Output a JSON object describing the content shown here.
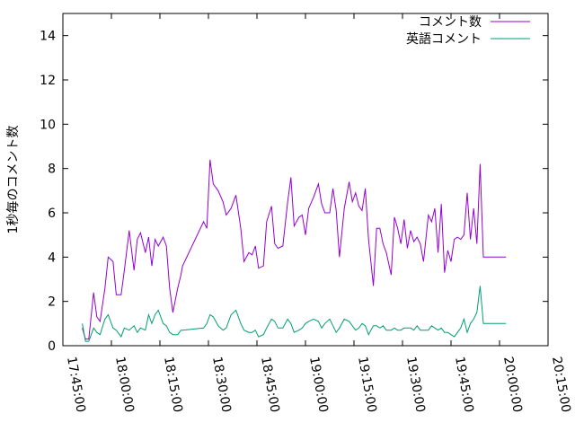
{
  "chart_data": {
    "type": "line",
    "ylabel": "1秒毎のコメント数",
    "xlabel": "",
    "title": "",
    "ylim": [
      0,
      15
    ],
    "yticks": [
      0,
      2,
      4,
      6,
      8,
      10,
      12,
      14
    ],
    "yticklabels": [
      "0",
      "2",
      "4",
      "6",
      "8",
      "10",
      "12",
      "14"
    ],
    "xlim": [
      "17:45:00",
      "20:15:00"
    ],
    "xticklabels": [
      "17:45:00",
      "18:00:00",
      "18:15:00",
      "18:30:00",
      "18:45:00",
      "19:00:00",
      "19:15:00",
      "19:30:00",
      "19:45:00",
      "20:00:00",
      "20:15:00"
    ],
    "legend_position": "top-right",
    "colors": {
      "series1": "#9400d3",
      "series2": "#009e73"
    },
    "series": [
      {
        "name": "コメント数",
        "x": [
          "17:51:00",
          "17:52:00",
          "17:53:00",
          "17:54:30",
          "17:55:30",
          "17:56:30",
          "17:58:00",
          "17:59:00",
          "18:00:30",
          "18:01:30",
          "18:03:00",
          "18:04:00",
          "18:05:30",
          "18:07:00",
          "18:08:00",
          "18:09:00",
          "18:10:30",
          "18:11:30",
          "18:12:30",
          "18:13:30",
          "18:14:30",
          "18:16:00",
          "18:17:00",
          "18:18:00",
          "18:19:00",
          "18:20:30",
          "18:21:30",
          "18:22:00",
          "18:28:30",
          "18:29:30",
          "18:30:30",
          "18:31:30",
          "18:33:00",
          "18:34:30",
          "18:35:30",
          "18:37:00",
          "18:38:30",
          "18:40:00",
          "18:41:00",
          "18:42:30",
          "18:43:30",
          "18:44:30",
          "18:45:30",
          "18:47:00",
          "18:48:00",
          "18:49:30",
          "18:50:30",
          "18:51:30",
          "18:53:00",
          "18:54:30",
          "18:55:30",
          "18:56:30",
          "18:58:00",
          "18:59:00",
          "19:00:00",
          "19:01:00",
          "19:02:30",
          "19:04:00",
          "19:05:00",
          "19:06:00",
          "19:07:30",
          "19:08:30",
          "19:09:30",
          "19:10:30",
          "19:12:00",
          "19:13:30",
          "19:14:30",
          "19:15:30",
          "19:16:30",
          "19:17:30",
          "19:18:30",
          "19:19:30",
          "19:21:00",
          "19:22:00",
          "19:23:00",
          "19:24:00",
          "19:25:00",
          "19:26:30",
          "19:27:30",
          "19:28:30",
          "19:29:30",
          "19:30:30",
          "19:31:30",
          "19:32:30",
          "19:33:30",
          "19:34:30",
          "19:35:30",
          "19:36:30",
          "19:38:00",
          "19:39:00",
          "19:40:00",
          "19:41:00",
          "19:42:00",
          "19:43:00",
          "19:44:00",
          "19:45:00",
          "19:46:00",
          "19:47:00",
          "19:48:00",
          "19:49:00",
          "19:50:00",
          "19:51:00",
          "19:52:00",
          "19:53:00",
          "19:54:00",
          "19:55:00",
          "19:56:00",
          "19:57:00",
          "19:58:00",
          "19:59:00",
          "20:00:00",
          "20:01:00",
          "20:02:00"
        ],
        "values": [
          0.8,
          0.3,
          0.3,
          2.4,
          1.3,
          1.1,
          2.6,
          4.0,
          3.8,
          2.3,
          2.3,
          3.4,
          5.2,
          3.4,
          4.8,
          5.1,
          4.2,
          4.9,
          3.6,
          4.8,
          4.5,
          4.9,
          4.5,
          2.6,
          1.5,
          2.6,
          3.2,
          3.6,
          5.6,
          5.3,
          8.4,
          7.3,
          7.0,
          6.5,
          5.9,
          6.2,
          6.8,
          5.3,
          3.8,
          4.2,
          4.1,
          4.5,
          3.5,
          3.6,
          5.6,
          6.3,
          4.6,
          4.4,
          4.5,
          6.5,
          7.6,
          5.4,
          5.8,
          5.9,
          5.0,
          6.2,
          6.7,
          7.3,
          6.4,
          6.0,
          6.0,
          7.1,
          6.1,
          4.0,
          6.2,
          7.4,
          6.5,
          6.9,
          6.3,
          6.1,
          7.1,
          4.8,
          2.7,
          5.3,
          5.3,
          4.6,
          4.2,
          3.2,
          5.8,
          5.3,
          4.6,
          5.7,
          4.4,
          5.2,
          4.7,
          4.9,
          4.6,
          3.8,
          5.9,
          5.6,
          6.2,
          4.2,
          6.4,
          3.3,
          4.3,
          3.8,
          4.8,
          4.9,
          4.8,
          5.0,
          6.9,
          4.8,
          6.2,
          4.6,
          8.2,
          4.0,
          4.0,
          4.0,
          4.0,
          4.0,
          4.0,
          4.0,
          4.0
        ]
      },
      {
        "name": "英語コメント",
        "x": [
          "17:51:00",
          "17:52:00",
          "17:53:00",
          "17:54:30",
          "17:55:30",
          "17:56:30",
          "17:58:00",
          "17:59:00",
          "18:00:30",
          "18:01:30",
          "18:03:00",
          "18:04:00",
          "18:05:30",
          "18:07:00",
          "18:08:00",
          "18:09:00",
          "18:10:30",
          "18:11:30",
          "18:12:30",
          "18:13:30",
          "18:14:30",
          "18:16:00",
          "18:17:00",
          "18:18:00",
          "18:19:00",
          "18:20:30",
          "18:21:30",
          "18:22:00",
          "18:28:30",
          "18:29:30",
          "18:30:30",
          "18:31:30",
          "18:33:00",
          "18:34:30",
          "18:35:30",
          "18:37:00",
          "18:38:30",
          "18:40:00",
          "18:41:00",
          "18:42:30",
          "18:43:30",
          "18:44:30",
          "18:45:30",
          "18:47:00",
          "18:48:00",
          "18:49:30",
          "18:50:30",
          "18:51:30",
          "18:53:00",
          "18:54:30",
          "18:55:30",
          "18:56:30",
          "18:58:00",
          "18:59:00",
          "19:00:00",
          "19:01:00",
          "19:02:30",
          "19:04:00",
          "19:05:00",
          "19:06:00",
          "19:07:30",
          "19:08:30",
          "19:09:30",
          "19:10:30",
          "19:12:00",
          "19:13:30",
          "19:14:30",
          "19:15:30",
          "19:16:30",
          "19:17:30",
          "19:18:30",
          "19:19:30",
          "19:21:00",
          "19:22:00",
          "19:23:00",
          "19:24:00",
          "19:25:00",
          "19:26:30",
          "19:27:30",
          "19:28:30",
          "19:29:30",
          "19:30:30",
          "19:31:30",
          "19:32:30",
          "19:33:30",
          "19:34:30",
          "19:35:30",
          "19:36:30",
          "19:38:00",
          "19:39:00",
          "19:40:00",
          "19:41:00",
          "19:42:00",
          "19:43:00",
          "19:44:00",
          "19:45:00",
          "19:46:00",
          "19:47:00",
          "19:48:00",
          "19:49:00",
          "19:50:00",
          "19:51:00",
          "19:52:00",
          "19:53:00",
          "19:54:00",
          "19:55:00",
          "19:56:00",
          "19:57:00",
          "19:58:00",
          "19:59:00",
          "20:00:00",
          "20:01:00",
          "20:02:00"
        ],
        "values": [
          1.0,
          0.2,
          0.2,
          0.8,
          0.6,
          0.5,
          1.2,
          1.4,
          0.8,
          0.7,
          0.4,
          0.8,
          0.7,
          0.9,
          0.6,
          0.8,
          0.7,
          1.4,
          1.0,
          1.4,
          1.6,
          1.0,
          0.9,
          0.6,
          0.5,
          0.5,
          0.7,
          0.7,
          0.8,
          1.0,
          1.4,
          1.3,
          0.9,
          0.7,
          0.8,
          1.4,
          1.6,
          1.0,
          0.7,
          0.6,
          0.6,
          0.7,
          0.4,
          0.5,
          0.8,
          1.2,
          1.1,
          0.8,
          0.8,
          1.2,
          1.0,
          0.6,
          0.7,
          0.8,
          1.0,
          1.1,
          1.2,
          1.1,
          0.8,
          1.0,
          1.2,
          0.9,
          0.6,
          0.8,
          1.2,
          1.1,
          0.9,
          0.7,
          0.8,
          1.0,
          0.9,
          0.5,
          0.9,
          0.9,
          0.8,
          0.9,
          0.7,
          0.7,
          0.8,
          0.7,
          0.7,
          0.8,
          0.8,
          0.8,
          0.7,
          0.9,
          0.7,
          0.7,
          0.7,
          0.9,
          0.8,
          0.7,
          0.8,
          0.6,
          0.6,
          0.5,
          0.4,
          0.6,
          0.8,
          1.2,
          0.6,
          1.0,
          1.2,
          1.5,
          2.7,
          1.0,
          1.0,
          1.0,
          1.0,
          1.0,
          1.0,
          1.0,
          1.0
        ]
      }
    ]
  }
}
